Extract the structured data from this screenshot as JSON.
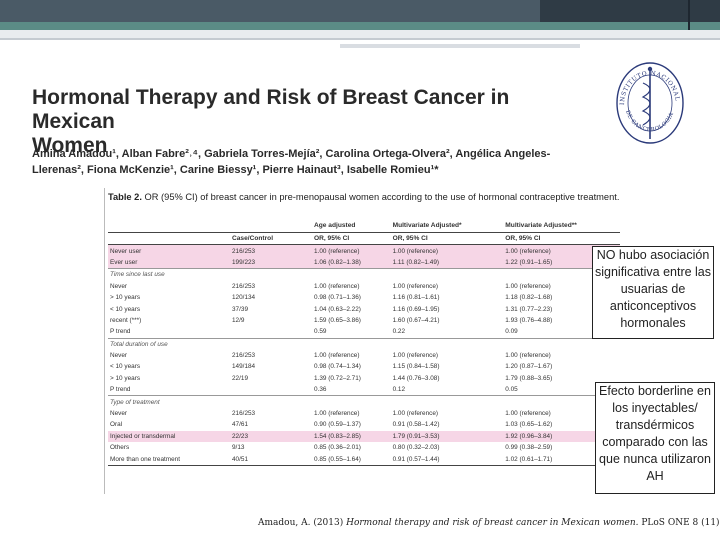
{
  "paper": {
    "title_line1": "Hormonal Therapy and Risk of Breast Cancer in Mexican",
    "title_line2": "Women",
    "authors_line1": "Amina Amadou¹, Alban Fabre²˒⁴, Gabriela Torres-Mejía², Carolina Ortega-Olvera², Angélica Angeles-",
    "authors_line2": "Llerenas², Fiona McKenzie¹, Carine Biessy¹, Pierre Hainaut³, Isabelle Romieu¹*"
  },
  "logo": {
    "text": "INSTITUTO NACIONAL DE CANCEROLOGIA · México",
    "icon": "caduceus-icon"
  },
  "table": {
    "caption_bold": "Table 2.",
    "caption_text": " OR (95% CI) of breast cancer in pre-menopausal women according to the use of hormonal contraceptive treatment.",
    "group_headers": [
      "",
      "",
      "Age adjusted",
      "Multivariate Adjusted*",
      "Multivariate Adjusted**"
    ],
    "col_headers": [
      "",
      "Case/Control",
      "OR, 95% CI",
      "OR, 95% CI",
      "OR, 95% CI"
    ],
    "rows": [
      {
        "label": "Never user",
        "cc": "216/253",
        "a": "1.00 (reference)",
        "m1": "1.00 (reference)",
        "m2": "1.00 (reference)",
        "style": "pink"
      },
      {
        "label": "Ever user",
        "cc": "199/223",
        "a": "1.06 (0.82–1.38)",
        "m1": "1.11 (0.82–1.49)",
        "m2": "1.22 (0.91–1.65)",
        "style": "pink"
      },
      {
        "label": "Time since last use",
        "cc": "",
        "a": "",
        "m1": "",
        "m2": "",
        "style": "sect"
      },
      {
        "label": "Never",
        "cc": "216/253",
        "a": "1.00 (reference)",
        "m1": "1.00 (reference)",
        "m2": "1.00 (reference)",
        "style": ""
      },
      {
        "label": "> 10 years",
        "cc": "120/134",
        "a": "0.98 (0.71–1.36)",
        "m1": "1.16 (0.81–1.61)",
        "m2": "1.18 (0.82–1.68)",
        "style": ""
      },
      {
        "label": "< 10 years",
        "cc": "37/39",
        "a": "1.04 (0.63–2.22)",
        "m1": "1.16 (0.69–1.95)",
        "m2": "1.31 (0.77–2.23)",
        "style": ""
      },
      {
        "label": "recent (***)",
        "cc": "12/9",
        "a": "1.59 (0.65–3.86)",
        "m1": "1.60 (0.67–4.21)",
        "m2": "1.93 (0.76–4.88)",
        "style": ""
      },
      {
        "label": "P trend",
        "cc": "",
        "a": "0.59",
        "m1": "0.22",
        "m2": "0.09",
        "style": ""
      },
      {
        "label": "Total duration of use",
        "cc": "",
        "a": "",
        "m1": "",
        "m2": "",
        "style": "sect"
      },
      {
        "label": "Never",
        "cc": "216/253",
        "a": "1.00 (reference)",
        "m1": "1.00 (reference)",
        "m2": "1.00 (reference)",
        "style": ""
      },
      {
        "label": "< 10 years",
        "cc": "149/184",
        "a": "0.98 (0.74–1.34)",
        "m1": "1.15 (0.84–1.58)",
        "m2": "1.20 (0.87–1.67)",
        "style": ""
      },
      {
        "label": "> 10 years",
        "cc": "22/19",
        "a": "1.39 (0.72–2.71)",
        "m1": "1.44 (0.76–3.08)",
        "m2": "1.79 (0.88–3.65)",
        "style": ""
      },
      {
        "label": "P trend",
        "cc": "",
        "a": "0.36",
        "m1": "0.12",
        "m2": "0.05",
        "style": ""
      },
      {
        "label": "Type of treatment",
        "cc": "",
        "a": "",
        "m1": "",
        "m2": "",
        "style": "sect"
      },
      {
        "label": "Never",
        "cc": "216/253",
        "a": "1.00 (reference)",
        "m1": "1.00 (reference)",
        "m2": "1.00 (reference)",
        "style": ""
      },
      {
        "label": "Oral",
        "cc": "47/61",
        "a": "0.90 (0.59–1.37)",
        "m1": "0.91 (0.58–1.42)",
        "m2": "1.03 (0.65–1.62)",
        "style": ""
      },
      {
        "label": "Injected or transdermal",
        "cc": "22/23",
        "a": "1.54 (0.83–2.85)",
        "m1": "1.79 (0.91–3.53)",
        "m2": "1.92 (0.96–3.84)",
        "style": "pink"
      },
      {
        "label": "Others",
        "cc": "9/13",
        "a": "0.85 (0.36–2.01)",
        "m1": "0.80 (0.32–2.03)",
        "m2": "0.99 (0.38–2.59)",
        "style": ""
      },
      {
        "label": "More than one treatment",
        "cc": "40/51",
        "a": "0.85 (0.55–1.64)",
        "m1": "0.91 (0.57–1.44)",
        "m2": "1.02 (0.61–1.71)",
        "style": "last"
      }
    ]
  },
  "notes": {
    "note1": "NO hubo asociación significativa entre las usuarias de anticonceptivos hormonales",
    "note2": "Efecto borderline en los inyectables/ transdérmicos comparado con las que nunca utilizaron AH"
  },
  "citation": {
    "prefix": "Amadou, A. (2013) ",
    "italic": "Hormonal therapy and risk of breast cancer in Mexican women.",
    "suffix": " PLoS ONE 8 (11)"
  }
}
